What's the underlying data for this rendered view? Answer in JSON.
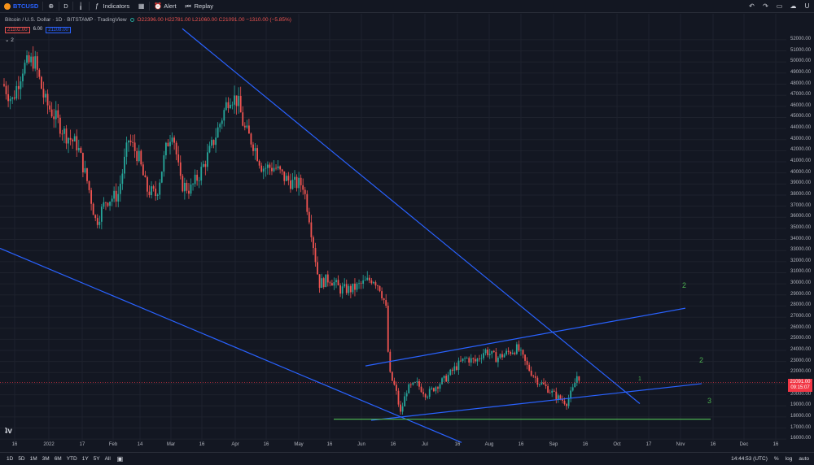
{
  "topbar": {
    "symbol": "BTCUSD",
    "interval": "D",
    "indicators_label": "Indicators",
    "alert_label": "Alert",
    "replay_label": "Replay"
  },
  "legend": {
    "title": "Bitcoin / U.S. Dollar · 1D · BITSTAMP · TradingView",
    "ohlc": "O22396.00 H22781.00 L21060.00 C21091.00 −1310.00 (−5.85%)",
    "bid": "21102.00",
    "spread": "6.00",
    "ask": "21108.00",
    "indicator_count": "2"
  },
  "last_price": {
    "value": "21091.00",
    "countdown": "09:15:07"
  },
  "wave_labels": [
    "2",
    "2",
    "3",
    "1"
  ],
  "chart_data": {
    "type": "candlestick",
    "symbol": "BTCUSD",
    "interval": "1D",
    "y_ticks": [
      "52000.00",
      "51000.00",
      "50000.00",
      "49000.00",
      "48000.00",
      "47000.00",
      "46000.00",
      "45000.00",
      "44000.00",
      "43000.00",
      "42000.00",
      "41000.00",
      "40000.00",
      "39000.00",
      "38000.00",
      "37000.00",
      "36000.00",
      "35000.00",
      "34000.00",
      "33000.00",
      "32000.00",
      "31000.00",
      "30000.00",
      "29000.00",
      "28000.00",
      "27000.00",
      "26000.00",
      "25000.00",
      "24000.00",
      "23000.00",
      "22000.00",
      "21000.00",
      "20000.00",
      "19000.00",
      "18000.00",
      "17000.00",
      "16000.00"
    ],
    "x_ticks": [
      "16",
      "2022",
      "17",
      "Feb",
      "14",
      "Mar",
      "16",
      "Apr",
      "16",
      "May",
      "16",
      "Jun",
      "16",
      "Jul",
      "16",
      "Aug",
      "16",
      "Sep",
      "16",
      "Oct",
      "17",
      "Nov",
      "16",
      "Dec",
      "16"
    ],
    "ylim": [
      15500,
      52800
    ],
    "last_close": 21091,
    "trendlines": [
      {
        "name": "upper-downtrend",
        "color": "#2962ff",
        "from": [
          0.224,
          53000
        ],
        "to": [
          0.786,
          19200
        ]
      },
      {
        "name": "lower-downtrend",
        "color": "#2962ff",
        "from": [
          0.0,
          33200
        ],
        "to": [
          0.567,
          15700
        ]
      },
      {
        "name": "channel-upper",
        "color": "#2962ff",
        "from": [
          0.449,
          22600
        ],
        "to": [
          0.842,
          27800
        ]
      },
      {
        "name": "channel-lower",
        "color": "#2962ff",
        "from": [
          0.456,
          17700
        ],
        "to": [
          0.862,
          21000
        ]
      },
      {
        "name": "support",
        "color": "#4caf50",
        "from": [
          0.41,
          17800
        ],
        "to": [
          0.873,
          17800
        ]
      }
    ]
  },
  "bottombar": {
    "ranges": [
      "1D",
      "5D",
      "1M",
      "3M",
      "6M",
      "YTD",
      "1Y",
      "5Y",
      "All"
    ],
    "time": "14:44:53 (UTC)",
    "percent_label": "%",
    "log_label": "log",
    "auto_label": "auto"
  }
}
